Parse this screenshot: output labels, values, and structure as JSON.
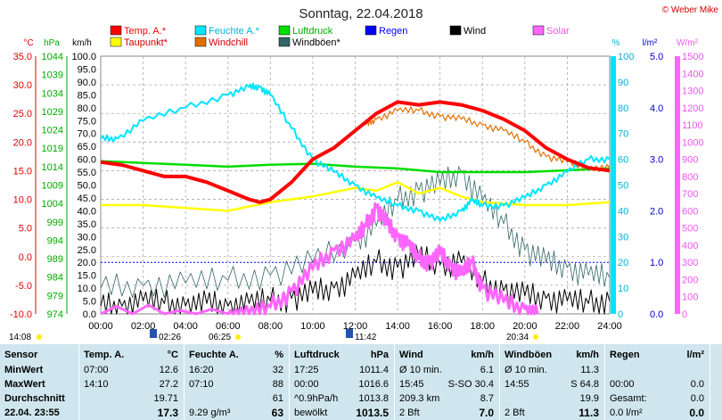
{
  "chart_data": {
    "type": "line",
    "title": "Sonntag, 22.04.2018",
    "copyright": "© Weber Mike",
    "legend": [
      {
        "name": "Temp. A.*",
        "color": "#ff0000"
      },
      {
        "name": "Feuchte A.*",
        "color": "#00e5ff"
      },
      {
        "name": "Luftdruck",
        "color": "#00dd00"
      },
      {
        "name": "Regen",
        "color": "#0000ff"
      },
      {
        "name": "Wind",
        "color": "#000000"
      },
      {
        "name": "Solar",
        "color": "#ff66ff"
      },
      {
        "name": "Taupunkt*",
        "color": "#ffff00"
      },
      {
        "name": "Windchill",
        "color": "#e07000"
      },
      {
        "name": "Windböen*",
        "color": "#336666"
      }
    ],
    "axis_units": {
      "temp": "°C",
      "pressure": "hPa",
      "wind": "km/h",
      "humidity": "%",
      "rain": "l/m²",
      "solar": "W/m²"
    },
    "temp_ticks": [
      "35.0",
      "30.0",
      "25.0",
      "20.0",
      "15.0",
      "10.0",
      "5.0",
      "0.0",
      "-5.0",
      "-10.0"
    ],
    "pressure_ticks": [
      "1044",
      "1039",
      "1034",
      "1029",
      "1024",
      "1019",
      "1014",
      "1009",
      "1004",
      "999",
      "994",
      "989",
      "984",
      "979",
      "974"
    ],
    "wind_ticks": [
      "100.0",
      "95.0",
      "90.0",
      "85.0",
      "80.0",
      "75.0",
      "70.0",
      "65.0",
      "60.0",
      "55.0",
      "50.0",
      "45.0",
      "40.0",
      "35.0",
      "30.0",
      "25.0",
      "20.0",
      "15.0",
      "10.0",
      "5.0",
      "0.0"
    ],
    "humidity_ticks": [
      "100",
      "90",
      "80",
      "70",
      "60",
      "50",
      "40",
      "30",
      "20",
      "10",
      "0"
    ],
    "rain_ticks": [
      "5.0",
      "4.0",
      "3.0",
      "2.0",
      "1.0",
      "0.0"
    ],
    "solar_ticks": [
      "1500",
      "1400",
      "1300",
      "1200",
      "1100",
      "1000",
      "900",
      "800",
      "700",
      "600",
      "500",
      "400",
      "300",
      "200",
      "100",
      "0"
    ],
    "x_ticks": [
      "00:00",
      "02:00",
      "04:00",
      "06:00",
      "08:00",
      "10:00",
      "12:00",
      "14:00",
      "16:00",
      "18:00",
      "20:00",
      "22:00",
      "24:00"
    ],
    "xlim": [
      0,
      24
    ],
    "temp_range": [
      -10,
      35
    ],
    "pressure_range": [
      974,
      1044
    ],
    "wind_range": [
      0,
      100
    ],
    "humidity_range": [
      0,
      100
    ],
    "solar_range": [
      0,
      1500
    ],
    "temperature": {
      "x": [
        0,
        1,
        2,
        3,
        4,
        5,
        6,
        7,
        7.5,
        8,
        9,
        10,
        11,
        12,
        13,
        14,
        15,
        16,
        17,
        18,
        19,
        20,
        21,
        22,
        23,
        24
      ],
      "y": [
        16.5,
        16,
        15,
        14,
        14,
        13,
        11.5,
        10,
        9.5,
        10,
        13,
        17,
        19,
        22,
        25,
        27,
        26.5,
        27,
        26.5,
        25.5,
        24,
        22,
        19,
        17,
        15.5,
        15
      ]
    },
    "windchill": {
      "x": [
        12.5,
        13,
        14,
        15,
        16,
        17,
        18,
        19,
        20,
        21,
        22,
        23,
        24
      ],
      "y": [
        23,
        24,
        25.5,
        25.5,
        24.5,
        24,
        23,
        22,
        20,
        17.5,
        16.5,
        15.5,
        15.5
      ]
    },
    "dewpoint": {
      "x": [
        0,
        2,
        4,
        6,
        8,
        10,
        12,
        13,
        14,
        15,
        16,
        17,
        18,
        20,
        22,
        24
      ],
      "y": [
        9,
        9,
        8.5,
        8,
        9.5,
        10.5,
        12,
        11.5,
        13,
        11,
        12,
        10.5,
        9.5,
        9,
        9,
        9.5
      ]
    },
    "humidity": {
      "x": [
        0,
        0.8,
        2,
        4,
        6,
        7,
        7.5,
        8,
        9,
        10,
        11,
        12,
        13,
        14,
        15,
        16,
        17,
        17.5,
        18,
        19,
        20,
        21,
        22,
        23,
        24
      ],
      "y": [
        68,
        68,
        75,
        80,
        85,
        88,
        88,
        85,
        72,
        60,
        55,
        50,
        45,
        42,
        40,
        36,
        40,
        44,
        42,
        42,
        45,
        50,
        55,
        60,
        60
      ]
    },
    "pressure": {
      "x": [
        0,
        2,
        4,
        6,
        8,
        10,
        12,
        14,
        16,
        18,
        20,
        22,
        24
      ],
      "y": [
        1015.5,
        1015,
        1014.5,
        1014,
        1014.5,
        1014.8,
        1014,
        1013.5,
        1012.5,
        1012.5,
        1012.5,
        1013,
        1013.5
      ]
    },
    "solar": {
      "x": [
        0,
        6,
        7,
        8,
        9,
        10,
        11,
        12,
        12.5,
        13,
        13.5,
        14,
        14.5,
        15,
        15.5,
        16,
        16.5,
        17,
        17.5,
        18,
        19,
        20,
        20.6
      ],
      "y": [
        0,
        0,
        0,
        40,
        130,
        260,
        370,
        430,
        510,
        620,
        520,
        450,
        400,
        320,
        300,
        350,
        280,
        230,
        300,
        150,
        70,
        30,
        0
      ]
    },
    "wind": {
      "x": [
        0,
        1,
        2,
        3,
        4,
        5,
        6,
        7,
        8,
        9,
        10,
        11,
        12,
        13,
        14,
        15,
        16,
        17,
        18,
        19,
        20,
        21,
        22,
        23,
        24
      ],
      "y": [
        3,
        3,
        5,
        4,
        3,
        4,
        3,
        4,
        5,
        6,
        8,
        10,
        14,
        20,
        18,
        22,
        19,
        20,
        12,
        9,
        7,
        6,
        5,
        4,
        5
      ]
    },
    "gusts": {
      "x": [
        0,
        2,
        4,
        6,
        8,
        10,
        12,
        13,
        14,
        15,
        16,
        17,
        18,
        19,
        20,
        21,
        22,
        23,
        24
      ],
      "y": [
        10,
        11,
        12,
        13,
        15,
        20,
        28,
        34,
        44,
        48,
        50,
        55,
        44,
        35,
        25,
        20,
        18,
        15,
        14
      ]
    },
    "rain_line": 1.0,
    "sun_markers": [
      "14:08",
      "02:26",
      "06:25",
      "11:42",
      "20:34"
    ],
    "table": {
      "sensor": {
        "header": "Sensor",
        "rows": [
          "MinWert",
          "MaxWert",
          "Durchschnitt",
          "22.04. 23:55"
        ]
      },
      "temp": {
        "header": "Temp. A.",
        "unit": "°C",
        "rows": [
          [
            "07:00",
            "12.6"
          ],
          [
            "14:10",
            "27.2"
          ],
          [
            "",
            "19.71"
          ],
          [
            "",
            "17.3"
          ]
        ]
      },
      "feuchte": {
        "header": "Feuchte A.",
        "unit": "%",
        "rows": [
          [
            "16:20",
            "32"
          ],
          [
            "07:10",
            "88"
          ],
          [
            "",
            "61"
          ],
          [
            "9.29 g/m³",
            "63"
          ]
        ]
      },
      "luftdruck": {
        "header": "Luftdruck",
        "unit": "hPa",
        "rows": [
          [
            "17:25",
            "1011.4"
          ],
          [
            "00:00",
            "1016.6"
          ],
          [
            "^0.9hPa/h",
            "1013.8"
          ],
          [
            "bewölkt",
            "1013.5"
          ]
        ]
      },
      "wind": {
        "header": "Wind",
        "unit": "km/h",
        "rows": [
          [
            "Ø 10 min.",
            "6.1"
          ],
          [
            "15:45",
            "S-SO 30.4"
          ],
          [
            "209.3 km",
            "8.7"
          ],
          [
            "2 Bft",
            "7.0"
          ]
        ]
      },
      "windboen": {
        "header": "Windböen",
        "unit": "km/h",
        "rows": [
          [
            "Ø 10 min.",
            "11.3"
          ],
          [
            "14:55",
            "S 64.8"
          ],
          [
            "",
            "19.9"
          ],
          [
            "2 Bft",
            "11.3"
          ]
        ]
      },
      "regen": {
        "header": "Regen",
        "unit": "l/m²",
        "rows": [
          [
            "",
            ""
          ],
          [
            "00:00",
            "0.0"
          ],
          [
            "Gesamt:",
            "0.0"
          ],
          [
            "0.0 l/m²",
            "0.0"
          ]
        ]
      }
    }
  }
}
